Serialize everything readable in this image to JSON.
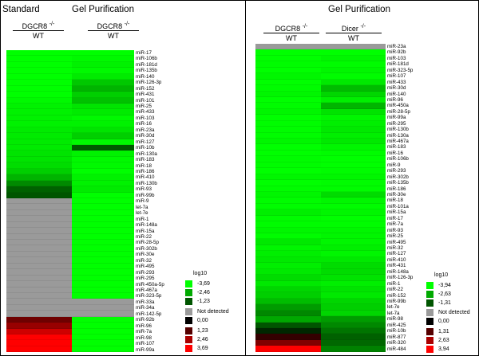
{
  "titles": {
    "standard": "Standard",
    "gel_left": "Gel Purification",
    "gel_right": "Gel Purification"
  },
  "comparisons": {
    "left1": {
      "num": "DGCR8",
      "sup": "-/-",
      "den": "WT"
    },
    "left2": {
      "num": "DGCR8",
      "sup": "-/-",
      "den": "WT"
    },
    "right1": {
      "num": "DGCR8",
      "sup": "-/-",
      "den": "WT"
    },
    "right2": {
      "num": "Dicer",
      "sup": "-/-",
      "den": "WT"
    }
  },
  "colors": {
    "bright_green": "#00ff00",
    "dark_green": "#003300",
    "black": "#000000",
    "dark_red": "#330000",
    "bright_red": "#ff0000",
    "not_detected": "#9a9a9a"
  },
  "chart_data": [
    {
      "type": "heatmap",
      "title": "",
      "columns": [
        "Standard DGCR8-/-/WT",
        "Gel Purification DGCR8-/-/WT"
      ],
      "rows": [
        "miR-17",
        "miR-106b",
        "miR-181d",
        "miR-135b",
        "miR-140",
        "miR-126-3p",
        "miR-152",
        "miR-431",
        "miR-101",
        "miR-25",
        "miR-433",
        "miR-103",
        "miR-16",
        "miR-23a",
        "miR-30d",
        "miR-127",
        "miR-10b",
        "miR-130a",
        "miR-183",
        "miR-18",
        "miR-186",
        "miR-410",
        "miR-130b",
        "miR-93",
        "miR-99b",
        "miR-9",
        "let-7a",
        "let-7e",
        "miR-1",
        "miR-148a",
        "miR-15a",
        "miR-22",
        "miR-28-5p",
        "miR-302b",
        "miR-30e",
        "miR-32",
        "miR-495",
        "miR-293",
        "miR-295",
        "miR-450a-5p",
        "miR-467a",
        "miR-323-5p",
        "miR-33a",
        "miR-34a",
        "miR-142-5p",
        "miR-92b",
        "miR-96",
        "miR-7a",
        "miR-98",
        "miR-107",
        "miR-99a"
      ],
      "values": [
        [
          -3.69,
          -3.69
        ],
        [
          -3.69,
          -3.6
        ],
        [
          -3.69,
          -3.5
        ],
        [
          -3.69,
          -3.6
        ],
        [
          -3.69,
          -3.4
        ],
        [
          -3.69,
          -2.9
        ],
        [
          -3.69,
          -2.6
        ],
        [
          -3.69,
          -3.0
        ],
        [
          -3.6,
          -2.8
        ],
        [
          -3.5,
          -3.3
        ],
        [
          -3.5,
          -3.4
        ],
        [
          -3.5,
          -3.6
        ],
        [
          -3.5,
          -3.5
        ],
        [
          -3.4,
          -3.3
        ],
        [
          -3.4,
          -3.0
        ],
        [
          -3.4,
          -3.6
        ],
        [
          -3.4,
          -1.3
        ],
        [
          -3.3,
          -3.5
        ],
        [
          -3.3,
          -3.6
        ],
        [
          -3.2,
          -3.6
        ],
        [
          -3.0,
          -3.69
        ],
        [
          -2.6,
          -3.5
        ],
        [
          -2.0,
          -3.5
        ],
        [
          -1.4,
          -3.4
        ],
        [
          -1.23,
          -3.69
        ],
        [
          null,
          -3.69
        ],
        [
          null,
          -3.69
        ],
        [
          null,
          -3.69
        ],
        [
          null,
          -3.69
        ],
        [
          null,
          -3.69
        ],
        [
          null,
          -3.69
        ],
        [
          null,
          -3.69
        ],
        [
          null,
          -3.69
        ],
        [
          null,
          -3.69
        ],
        [
          null,
          -3.69
        ],
        [
          null,
          -3.69
        ],
        [
          null,
          -3.69
        ],
        [
          null,
          -3.69
        ],
        [
          null,
          -3.69
        ],
        [
          null,
          -3.69
        ],
        [
          null,
          -3.69
        ],
        [
          null,
          -3.69
        ],
        [
          null,
          null
        ],
        [
          null,
          null
        ],
        [
          null,
          null
        ],
        [
          1.6,
          -3.69
        ],
        [
          2.2,
          -3.69
        ],
        [
          3.0,
          -3.69
        ],
        [
          3.69,
          -3.69
        ],
        [
          3.69,
          -3.69
        ],
        [
          3.69,
          -3.69
        ]
      ],
      "legend": {
        "title": "log10",
        "ticks": [
          "-3,69",
          "-2,46",
          "-1,23",
          "0,00",
          "1,23",
          "2,46",
          "3,69"
        ],
        "not_detected": "Not detected"
      }
    },
    {
      "type": "heatmap",
      "title": "",
      "columns": [
        "Gel Purification DGCR8-/-/WT",
        "Gel Purification Dicer-/-/WT"
      ],
      "rows": [
        "miR-23a",
        "miR-92b",
        "miR-103",
        "miR-181d",
        "miR-323-5p",
        "miR-107",
        "miR-433",
        "miR-30d",
        "miR-140",
        "miR-96",
        "miR-450a",
        "miR-28-5p",
        "miR-99a",
        "miR-295",
        "miR-130b",
        "miR-130a",
        "miR-467a",
        "miR-183",
        "miR-16",
        "miR-106b",
        "miR-9",
        "miR-293",
        "miR-302b",
        "miR-135b",
        "miR-186",
        "miR-30e",
        "miR-18",
        "miR-101a",
        "miR-15a",
        "miR-17",
        "miR-7a",
        "miR-93",
        "miR-25",
        "miR-495",
        "miR-32",
        "miR-127",
        "miR-410",
        "miR-431",
        "miR-148a",
        "miR-126-3p",
        "miR-1",
        "miR-22",
        "miR-152",
        "miR-99b",
        "let-7e",
        "let-7a",
        "miR-98",
        "miR-425",
        "miR-10b",
        "miR-877",
        "miR-320",
        "miR-484"
      ],
      "values": [
        [
          null,
          null
        ],
        [
          -3.94,
          -3.94
        ],
        [
          -3.94,
          -3.8
        ],
        [
          -3.9,
          -3.9
        ],
        [
          -3.94,
          -3.8
        ],
        [
          -3.8,
          -3.9
        ],
        [
          -3.94,
          -3.6
        ],
        [
          -3.9,
          -2.9
        ],
        [
          -3.8,
          -3.3
        ],
        [
          -3.94,
          -3.7
        ],
        [
          -3.9,
          -2.8
        ],
        [
          -3.8,
          -3.5
        ],
        [
          -3.94,
          -3.8
        ],
        [
          -3.9,
          -3.7
        ],
        [
          -3.9,
          -3.6
        ],
        [
          -3.9,
          -3.7
        ],
        [
          -3.8,
          -3.6
        ],
        [
          -3.94,
          -3.8
        ],
        [
          -3.94,
          -3.9
        ],
        [
          -3.9,
          -3.94
        ],
        [
          -3.9,
          -3.94
        ],
        [
          -3.94,
          -3.9
        ],
        [
          -3.8,
          -3.8
        ],
        [
          -3.94,
          -3.9
        ],
        [
          -3.9,
          -3.9
        ],
        [
          -3.8,
          -3.4
        ],
        [
          -3.9,
          -3.8
        ],
        [
          -3.9,
          -3.9
        ],
        [
          -3.7,
          -3.8
        ],
        [
          -3.9,
          -3.94
        ],
        [
          -3.9,
          -3.9
        ],
        [
          -3.8,
          -3.8
        ],
        [
          -3.9,
          -3.8
        ],
        [
          -3.6,
          -3.8
        ],
        [
          -3.8,
          -3.7
        ],
        [
          -3.7,
          -3.8
        ],
        [
          -3.6,
          -3.6
        ],
        [
          -3.7,
          -3.4
        ],
        [
          -3.6,
          -3.4
        ],
        [
          -3.4,
          -3.5
        ],
        [
          -3.6,
          -3.7
        ],
        [
          -3.3,
          -3.5
        ],
        [
          -3.2,
          -3.6
        ],
        [
          -2.9,
          -3.3
        ],
        [
          -2.4,
          -3.2
        ],
        [
          -2.1,
          -3.3
        ],
        [
          -2.6,
          -2.4
        ],
        [
          -1.31,
          -2.1
        ],
        [
          -0.6,
          -1.8
        ],
        [
          0.8,
          -1.5
        ],
        [
          2.0,
          -1.6
        ],
        [
          3.94,
          -2.0
        ]
      ],
      "legend": {
        "title": "log10",
        "ticks": [
          "-3,94",
          "-2,63",
          "-1,31",
          "0,00",
          "1,31",
          "2,63",
          "3,94"
        ],
        "not_detected": "Not detected"
      }
    }
  ]
}
